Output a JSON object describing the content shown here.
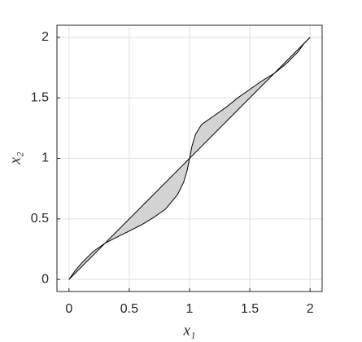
{
  "chart_data": {
    "type": "area_line",
    "xlabel": "x₁",
    "ylabel": "x₂",
    "xlim": [
      -0.1,
      2.1
    ],
    "ylim": [
      -0.1,
      2.1
    ],
    "xticks": [
      0,
      0.5,
      1,
      1.5,
      2
    ],
    "yticks": [
      0,
      0.5,
      1,
      1.5,
      2
    ],
    "grid": true,
    "fill": "#d3d3d3",
    "series": [
      {
        "color": "#000000",
        "x": [
          0,
          0.05,
          0.1,
          0.2,
          0.3,
          0.4,
          0.5,
          0.6,
          0.7,
          0.8,
          0.9,
          0.95,
          0.98,
          1,
          1.02,
          1.05,
          1.1,
          1.2,
          1.3,
          1.4,
          1.5,
          1.6,
          1.7,
          1.8,
          1.9,
          1.95,
          2
        ],
        "values": [
          0,
          0.07,
          0.13,
          0.23,
          0.3,
          0.35,
          0.4,
          0.45,
          0.51,
          0.58,
          0.7,
          0.8,
          0.9,
          1,
          1.1,
          1.2,
          1.28,
          1.35,
          1.42,
          1.5,
          1.57,
          1.64,
          1.7,
          1.78,
          1.88,
          1.95,
          2
        ]
      },
      {
        "color": "#000000",
        "x": [
          0,
          2
        ],
        "values": [
          0,
          2
        ]
      }
    ]
  }
}
